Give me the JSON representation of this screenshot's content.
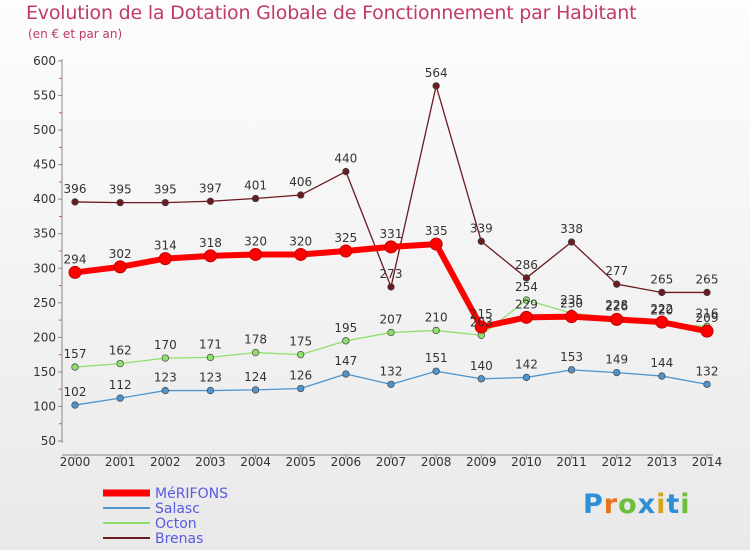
{
  "header": {
    "title": "Evolution de la Dotation Globale de Fonctionnement par Habitant",
    "subtitle": "(en € et par an)"
  },
  "logo": {
    "text": "Proxiti",
    "colors": [
      "#2f8fd6",
      "#e8721c",
      "#6cbf3a",
      "#2f8fd6",
      "#d6a51c",
      "#2f8fd6",
      "#6cbf3a"
    ]
  },
  "chart_data": {
    "type": "line",
    "title": "Evolution de la Dotation Globale de Fonctionnement par Habitant",
    "subtitle": "(en € et par an)",
    "x": [
      "2000",
      "2001",
      "2002",
      "2003",
      "2004",
      "2005",
      "2006",
      "2007",
      "2008",
      "2009",
      "2010",
      "2011",
      "2012",
      "2013",
      "2014"
    ],
    "ylim": [
      50,
      600
    ],
    "yticks": [
      50,
      100,
      150,
      200,
      250,
      300,
      350,
      400,
      450,
      500,
      550,
      600
    ],
    "grid": false,
    "legend_position": "bottom-left",
    "series": [
      {
        "name": "Brenas",
        "color": "#6b1a1f",
        "values": [
          396,
          395,
          395,
          397,
          401,
          406,
          440,
          273,
          564,
          339,
          286,
          338,
          277,
          265,
          265
        ]
      },
      {
        "name": "Octon",
        "color": "#8fe06a",
        "values": [
          157,
          162,
          170,
          171,
          178,
          175,
          195,
          207,
          210,
          203,
          254,
          235,
          228,
          220,
          216
        ]
      },
      {
        "name": "Salasc",
        "color": "#4f94cd",
        "values": [
          102,
          112,
          123,
          123,
          124,
          126,
          147,
          132,
          151,
          140,
          142,
          153,
          149,
          144,
          132
        ]
      },
      {
        "name": "MéRIFONS",
        "color": "#ff0000",
        "values": [
          294,
          302,
          314,
          318,
          320,
          320,
          325,
          331,
          335,
          215,
          229,
          230,
          226,
          222,
          209
        ]
      }
    ]
  }
}
